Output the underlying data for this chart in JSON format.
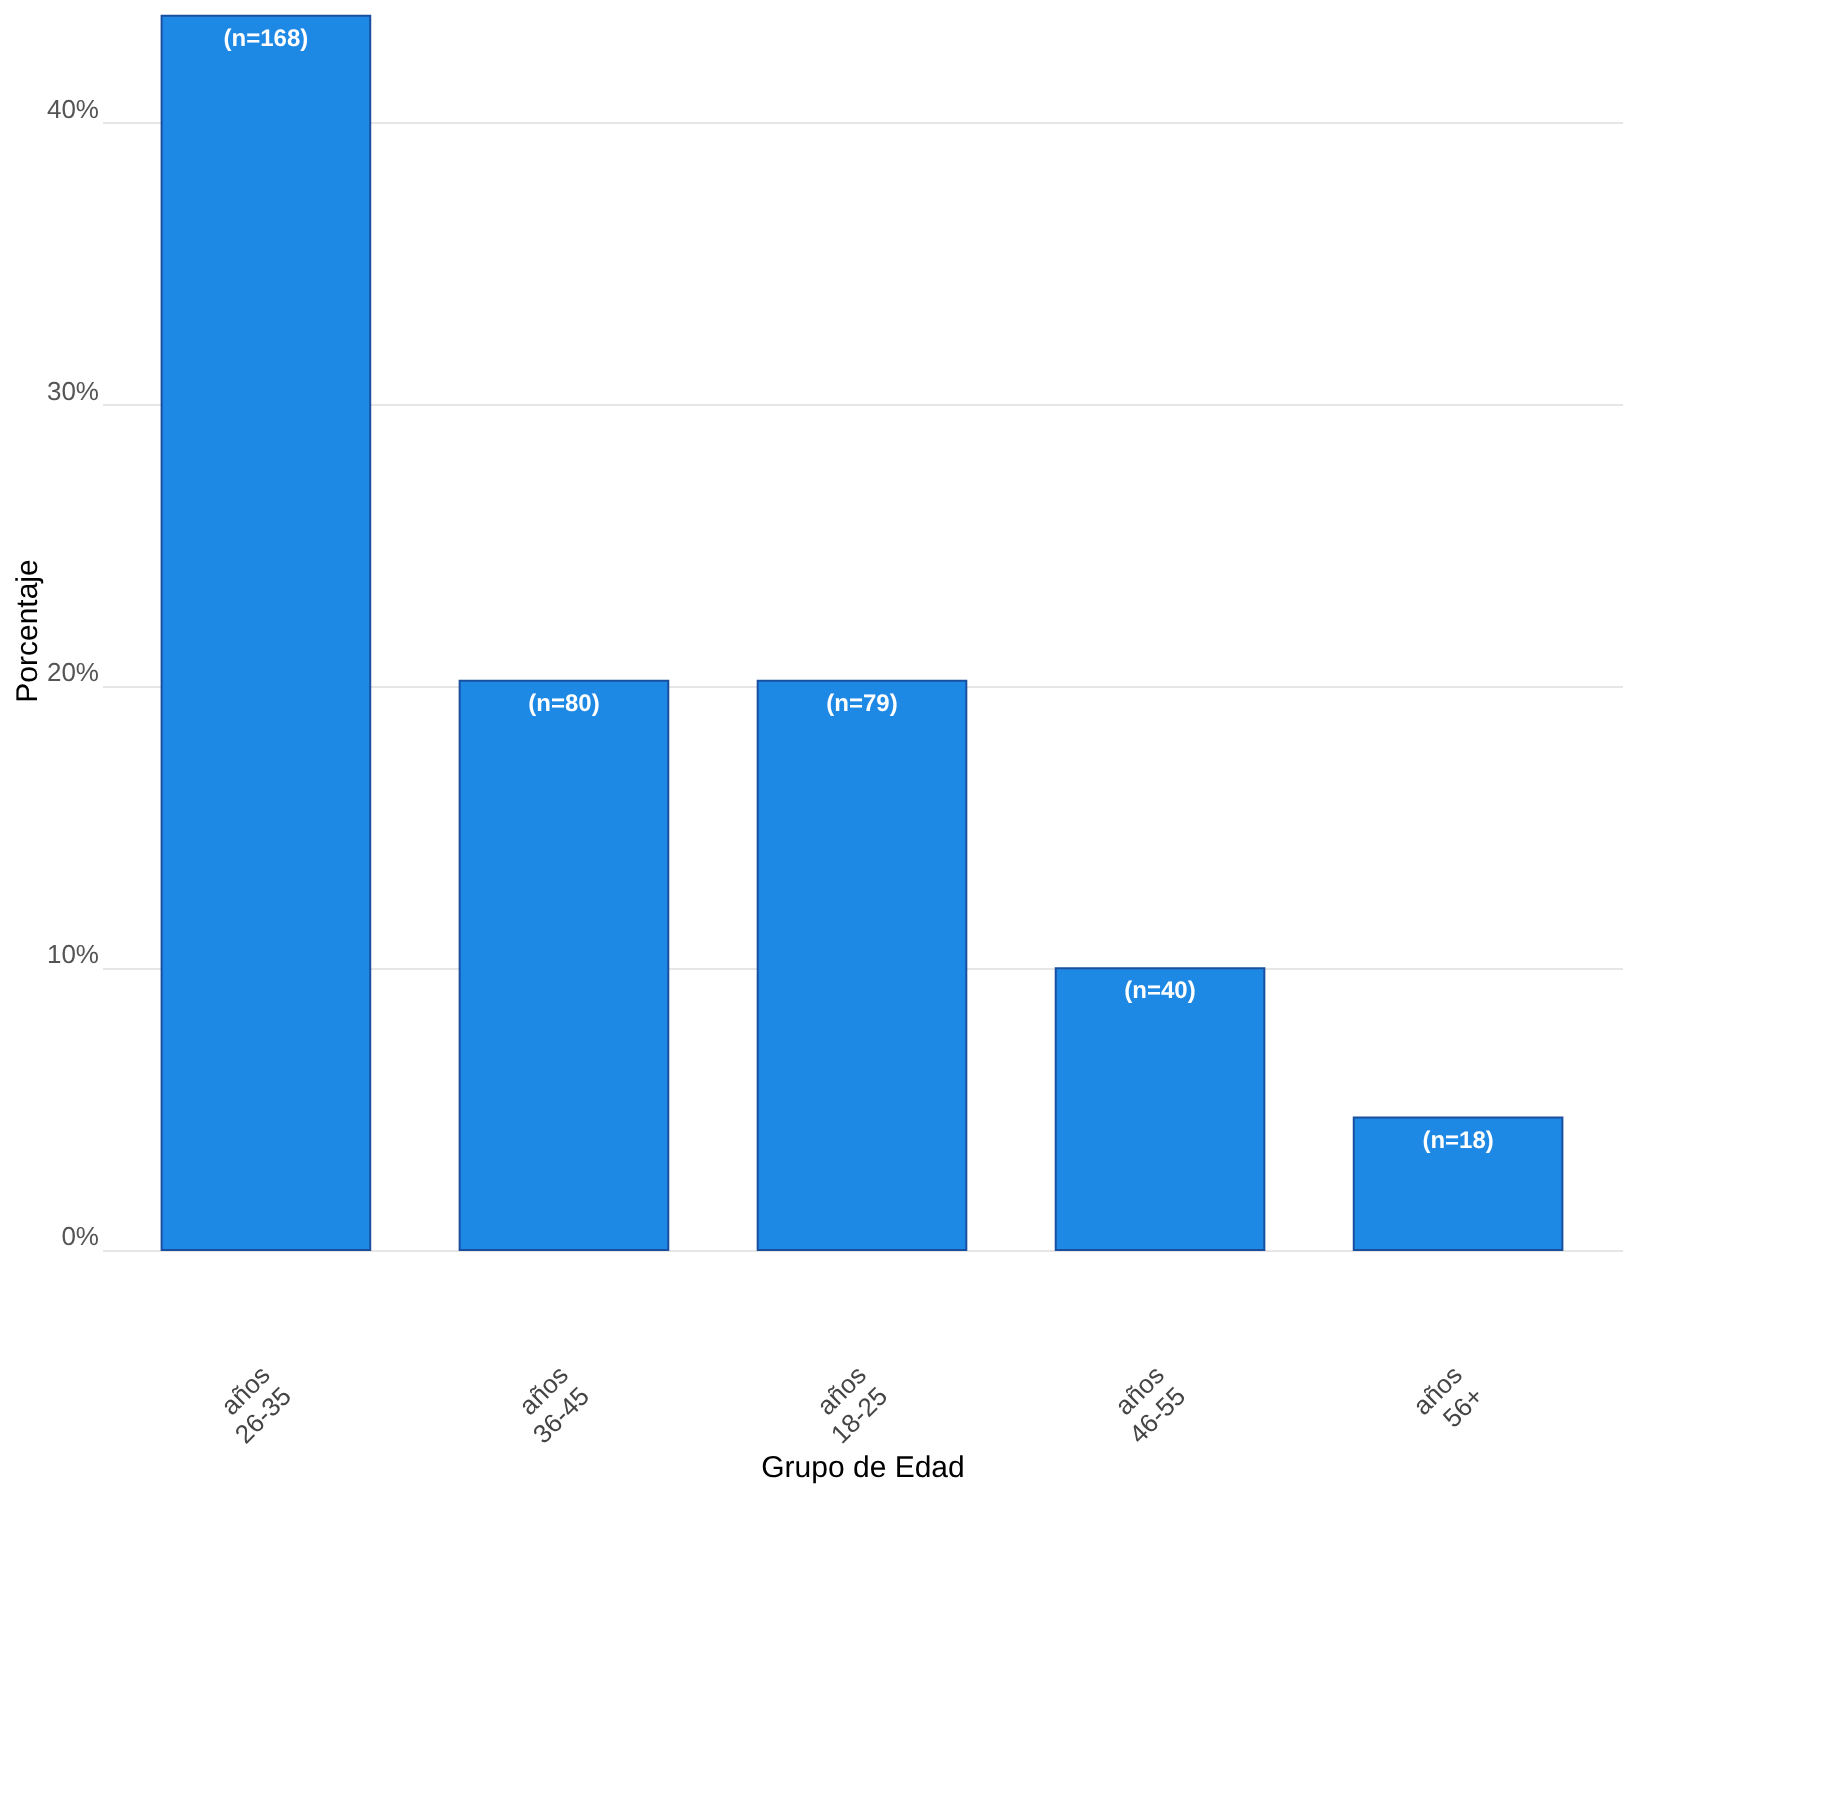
{
  "chart_data": {
    "type": "bar",
    "xlabel": "Grupo de Edad",
    "ylabel": "Porcentaje",
    "categories": [
      "años\n26-35",
      "años\n36-45",
      "años\n18-25",
      "años\n46-55",
      "años\n56+"
    ],
    "values": [
      43.8,
      20.2,
      20.2,
      10.0,
      4.7
    ],
    "annotations": [
      {
        "text": "(n=168)",
        "x": "años\n26-35",
        "y": 43.8
      },
      {
        "text": "(n=80)",
        "x": "años\n36-45",
        "y": 20.2
      },
      {
        "text": "(n=79)",
        "x": "años\n18-25",
        "y": 20.2
      },
      {
        "text": "(n=40)",
        "x": "años\n46-55",
        "y": 10.0
      },
      {
        "text": "(n=18)",
        "x": "años\n56+",
        "y": 4.7
      }
    ],
    "color": "#1e88e5",
    "ylim": [
      0,
      44
    ],
    "yticks": [
      {
        "value": 0,
        "label": "0%"
      },
      {
        "value": 10,
        "label": "10%"
      },
      {
        "value": 20,
        "label": "20%"
      },
      {
        "value": 30,
        "label": "30%"
      },
      {
        "value": 40,
        "label": "40%"
      }
    ],
    "grid": "y"
  }
}
